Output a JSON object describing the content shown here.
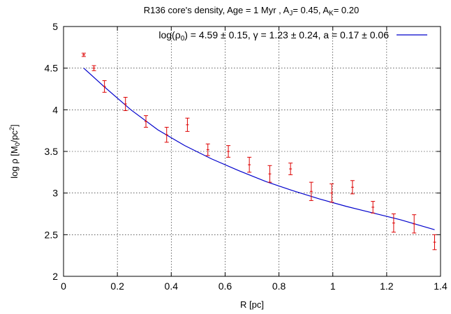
{
  "chart_data": {
    "type": "scatter",
    "title_parts": {
      "pre": "R136 core's density, Age = 1 Myr , A",
      "sub1": "J",
      "mid": "= 0.45, A",
      "sub2": "K",
      "post": "= 0.20"
    },
    "xlabel": "R [pc]",
    "ylabel_parts": {
      "pre": "log ρ [M",
      "sub": "0",
      "mid": "/pc",
      "sup": "2",
      "post": "]"
    },
    "xlim": [
      0,
      1.4
    ],
    "ylim": [
      2,
      5
    ],
    "x_ticks": [
      0,
      0.2,
      0.4,
      0.6,
      0.8,
      1,
      1.2,
      1.4
    ],
    "x_tick_labels": [
      "0",
      "0.2",
      "0.4",
      "0.6",
      "0.8",
      "1",
      "1.2",
      "1.4"
    ],
    "y_ticks": [
      2,
      2.5,
      3,
      3.5,
      4,
      4.5,
      5
    ],
    "y_tick_labels": [
      "2",
      "2.5",
      "3",
      "3.5",
      "4",
      "4.5",
      "5"
    ],
    "grid": true,
    "legend_position": "top-right",
    "points": {
      "color": "#dd0000",
      "x": [
        0.075,
        0.113,
        0.152,
        0.23,
        0.306,
        0.383,
        0.46,
        0.536,
        0.612,
        0.69,
        0.766,
        0.843,
        0.92,
        0.996,
        1.073,
        1.149,
        1.226,
        1.302,
        1.378
      ],
      "y": [
        4.66,
        4.5,
        4.28,
        4.07,
        3.86,
        3.7,
        3.82,
        3.52,
        3.5,
        3.34,
        3.23,
        3.29,
        3.02,
        3.0,
        3.07,
        2.83,
        2.64,
        2.63,
        2.41
      ],
      "err": [
        0.02,
        0.03,
        0.07,
        0.08,
        0.07,
        0.09,
        0.08,
        0.07,
        0.07,
        0.09,
        0.1,
        0.07,
        0.11,
        0.11,
        0.08,
        0.07,
        0.11,
        0.11,
        0.09
      ]
    },
    "fit": {
      "color": "#0000cc",
      "legend_parts": {
        "a": "log(ρ",
        "b": "0",
        "c": ") = 4.59 ± 0.15, γ = 1.23 ± 0.24, a = 0.17 ± 0.06"
      },
      "x": [
        0.075,
        0.15,
        0.25,
        0.35,
        0.45,
        0.55,
        0.65,
        0.75,
        0.85,
        0.95,
        1.05,
        1.15,
        1.25,
        1.378
      ],
      "y": [
        4.5,
        4.28,
        4.0,
        3.76,
        3.57,
        3.41,
        3.27,
        3.14,
        3.03,
        2.93,
        2.84,
        2.76,
        2.68,
        2.56
      ]
    }
  }
}
